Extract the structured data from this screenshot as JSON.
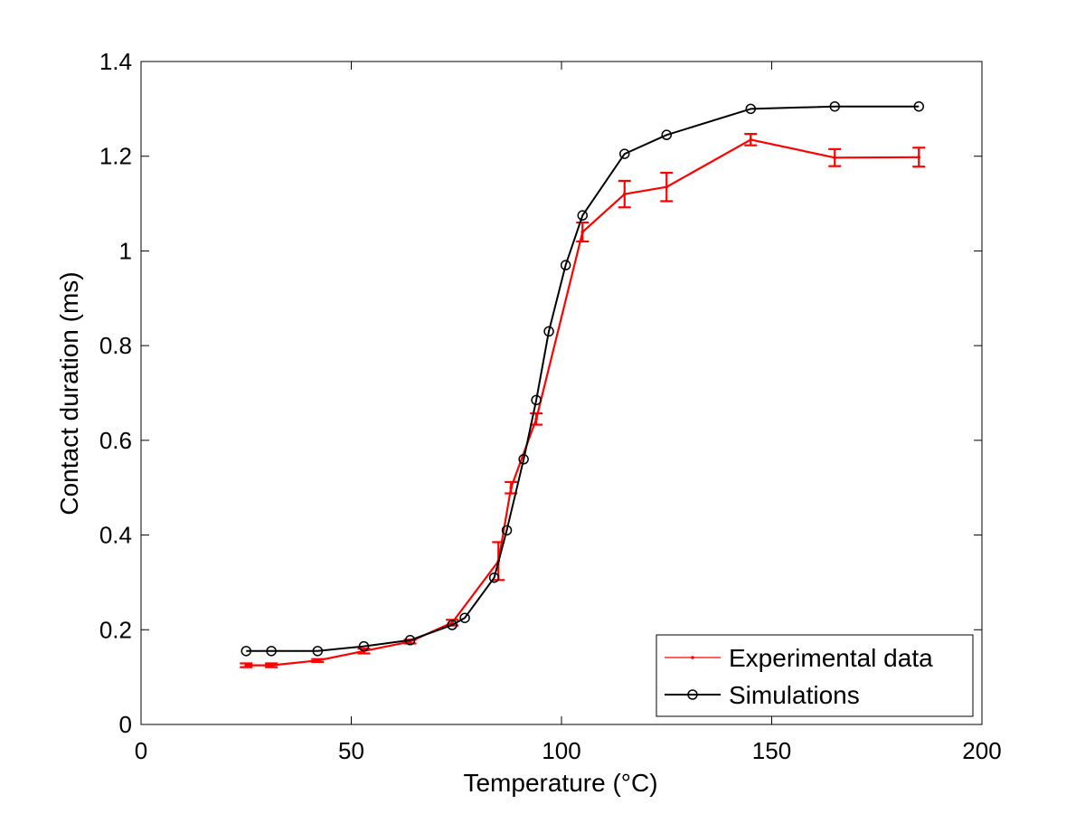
{
  "chart_data": {
    "type": "line",
    "title": "",
    "xlabel": "Temperature (°C)",
    "ylabel": "Contact duration (ms)",
    "xlim": [
      0,
      200
    ],
    "ylim": [
      0,
      1.4
    ],
    "xticks": [
      "0",
      "50",
      "100",
      "150",
      "200"
    ],
    "yticks": [
      "0",
      "0.2",
      "0.4",
      "0.6",
      "0.8",
      "1",
      "1.2",
      "1.4"
    ],
    "grid": false,
    "legend_position": "bottom-right",
    "series": [
      {
        "name": "Experimental data",
        "color": "#ff0000",
        "marker": "point",
        "error_bars": true,
        "points": [
          {
            "x": 25,
            "y": 0.125,
            "err": 0.004
          },
          {
            "x": 31,
            "y": 0.125,
            "err": 0.004
          },
          {
            "x": 42,
            "y": 0.135,
            "err": 0.003
          },
          {
            "x": 53,
            "y": 0.155,
            "err": 0.005
          },
          {
            "x": 64,
            "y": 0.175,
            "err": 0.004
          },
          {
            "x": 74,
            "y": 0.215,
            "err": 0.006
          },
          {
            "x": 85,
            "y": 0.345,
            "err": 0.04
          },
          {
            "x": 88,
            "y": 0.5,
            "err": 0.012
          },
          {
            "x": 94,
            "y": 0.645,
            "err": 0.012
          },
          {
            "x": 105,
            "y": 1.04,
            "err": 0.02
          },
          {
            "x": 115,
            "y": 1.12,
            "err": 0.028
          },
          {
            "x": 125,
            "y": 1.135,
            "err": 0.03
          },
          {
            "x": 145,
            "y": 1.235,
            "err": 0.012
          },
          {
            "x": 165,
            "y": 1.197,
            "err": 0.018
          },
          {
            "x": 185,
            "y": 1.198,
            "err": 0.02
          }
        ]
      },
      {
        "name": "Simulations",
        "color": "#000000",
        "marker": "circle",
        "error_bars": false,
        "points": [
          {
            "x": 25,
            "y": 0.155
          },
          {
            "x": 31,
            "y": 0.155
          },
          {
            "x": 42,
            "y": 0.155
          },
          {
            "x": 53,
            "y": 0.165
          },
          {
            "x": 64,
            "y": 0.178
          },
          {
            "x": 74,
            "y": 0.21
          },
          {
            "x": 77,
            "y": 0.225
          },
          {
            "x": 84,
            "y": 0.31
          },
          {
            "x": 87,
            "y": 0.41
          },
          {
            "x": 91,
            "y": 0.56
          },
          {
            "x": 94,
            "y": 0.685
          },
          {
            "x": 97,
            "y": 0.83
          },
          {
            "x": 101,
            "y": 0.97
          },
          {
            "x": 105,
            "y": 1.075
          },
          {
            "x": 115,
            "y": 1.205
          },
          {
            "x": 125,
            "y": 1.245
          },
          {
            "x": 145,
            "y": 1.3
          },
          {
            "x": 165,
            "y": 1.305
          },
          {
            "x": 185,
            "y": 1.305
          }
        ]
      }
    ]
  }
}
